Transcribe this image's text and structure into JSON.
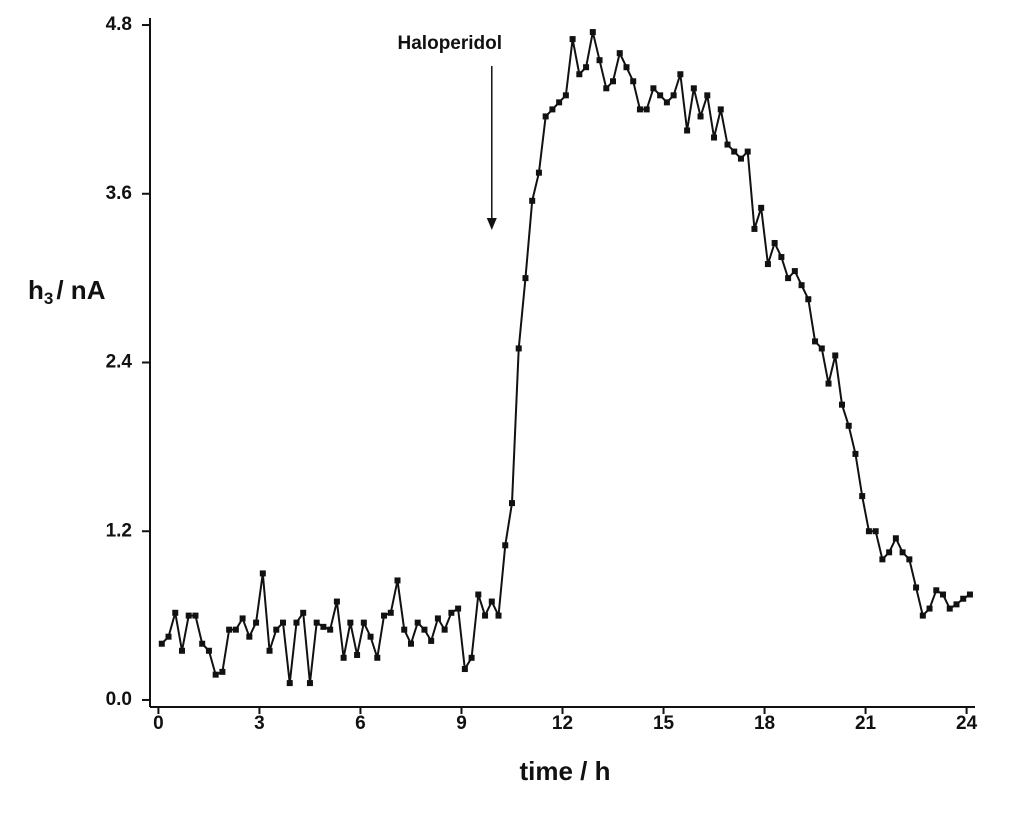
{
  "chart_data": {
    "type": "line",
    "xlabel": "time / h",
    "ylabel": {
      "main": "h",
      "sub": "3",
      "unit": "/ nA"
    },
    "annotation": {
      "text": "Haloperidol",
      "x": 9.9
    },
    "x": [
      0.1,
      0.3,
      0.5,
      0.7,
      0.9,
      1.1,
      1.3,
      1.5,
      1.7,
      1.9,
      2.1,
      2.3,
      2.5,
      2.7,
      2.9,
      3.1,
      3.3,
      3.5,
      3.7,
      3.9,
      4.1,
      4.3,
      4.5,
      4.7,
      4.9,
      5.1,
      5.3,
      5.5,
      5.7,
      5.9,
      6.1,
      6.3,
      6.5,
      6.7,
      6.9,
      7.1,
      7.3,
      7.5,
      7.7,
      7.9,
      8.1,
      8.3,
      8.5,
      8.7,
      8.9,
      9.1,
      9.3,
      9.5,
      9.7,
      9.9,
      10.1,
      10.3,
      10.5,
      10.7,
      10.9,
      11.1,
      11.3,
      11.5,
      11.7,
      11.9,
      12.1,
      12.3,
      12.5,
      12.7,
      12.9,
      13.1,
      13.3,
      13.5,
      13.7,
      13.9,
      14.1,
      14.3,
      14.5,
      14.7,
      14.9,
      15.1,
      15.3,
      15.5,
      15.7,
      15.9,
      16.1,
      16.3,
      16.5,
      16.7,
      16.9,
      17.1,
      17.3,
      17.5,
      17.7,
      17.9,
      18.1,
      18.3,
      18.5,
      18.7,
      18.9,
      19.1,
      19.3,
      19.5,
      19.7,
      19.9,
      20.1,
      20.3,
      20.5,
      20.7,
      20.9,
      21.1,
      21.3,
      21.5,
      21.7,
      21.9,
      22.1,
      22.3,
      22.5,
      22.7,
      22.9,
      23.1,
      23.3,
      23.5,
      23.7,
      23.9,
      24.1
    ],
    "series": [
      {
        "name": "h3",
        "color": "#111111",
        "values": [
          0.4,
          0.45,
          0.62,
          0.35,
          0.6,
          0.6,
          0.4,
          0.35,
          0.18,
          0.2,
          0.5,
          0.5,
          0.58,
          0.45,
          0.55,
          0.9,
          0.35,
          0.5,
          0.55,
          0.12,
          0.55,
          0.62,
          0.12,
          0.55,
          0.52,
          0.5,
          0.7,
          0.3,
          0.55,
          0.32,
          0.55,
          0.45,
          0.3,
          0.6,
          0.62,
          0.85,
          0.5,
          0.4,
          0.55,
          0.5,
          0.42,
          0.58,
          0.5,
          0.62,
          0.65,
          0.22,
          0.3,
          0.75,
          0.6,
          0.7,
          0.6,
          1.1,
          1.4,
          2.5,
          3.0,
          3.55,
          3.75,
          4.15,
          4.2,
          4.25,
          4.3,
          4.7,
          4.45,
          4.5,
          4.75,
          4.55,
          4.35,
          4.4,
          4.6,
          4.5,
          4.4,
          4.2,
          4.2,
          4.35,
          4.3,
          4.25,
          4.3,
          4.45,
          4.05,
          4.35,
          4.15,
          4.3,
          4.0,
          4.2,
          3.95,
          3.9,
          3.85,
          3.9,
          3.35,
          3.5,
          3.1,
          3.25,
          3.15,
          3.0,
          3.05,
          2.95,
          2.85,
          2.55,
          2.5,
          2.25,
          2.45,
          2.1,
          1.95,
          1.75,
          1.45,
          1.2,
          1.2,
          1.0,
          1.05,
          1.15,
          1.05,
          1.0,
          0.8,
          0.6,
          0.65,
          0.78,
          0.75,
          0.65,
          0.68,
          0.72,
          0.75
        ]
      }
    ],
    "xlim": [
      -0.25,
      24.25
    ],
    "ylim": [
      -0.05,
      4.85
    ],
    "xticks": [
      0,
      3,
      6,
      9,
      12,
      15,
      18,
      21,
      24
    ],
    "yticks": [
      {
        "value": 0,
        "label": "0.0"
      },
      1.2,
      2.4,
      3.6,
      4.8
    ]
  }
}
